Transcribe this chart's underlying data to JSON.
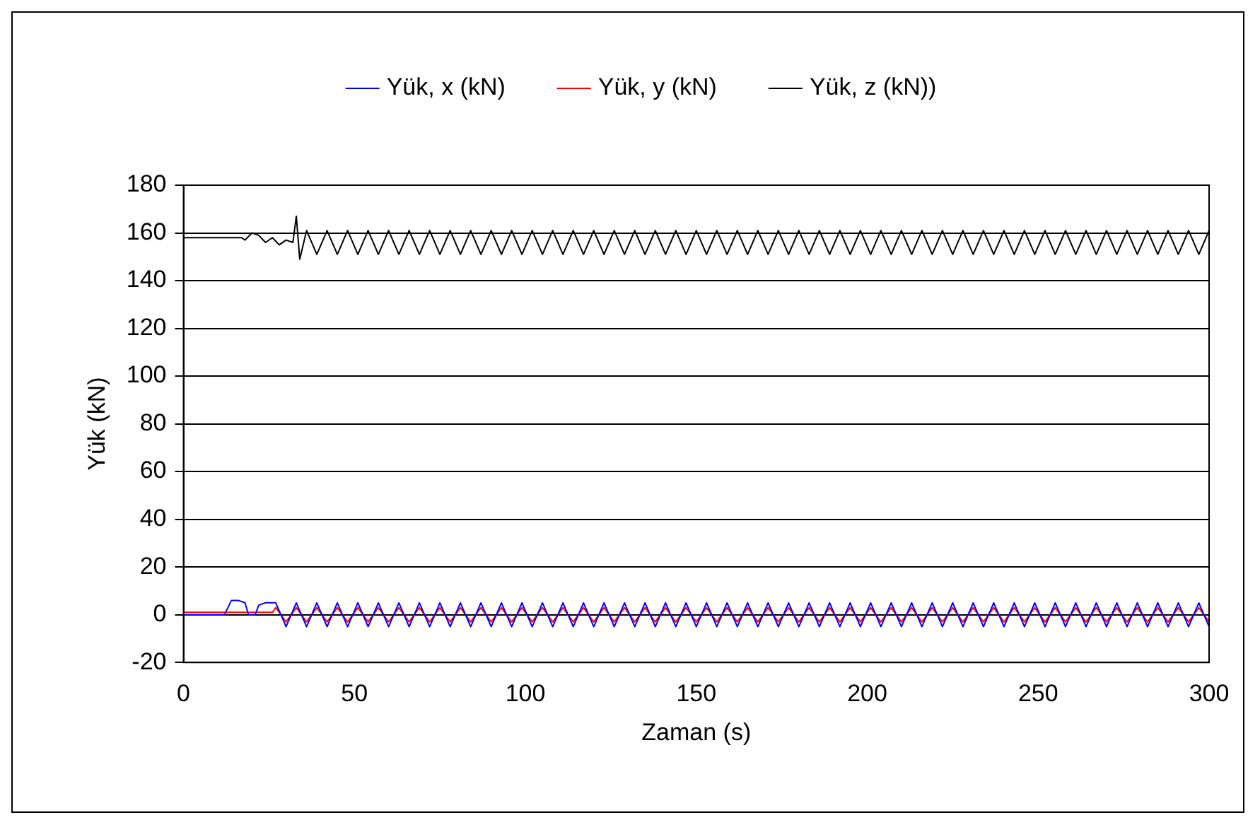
{
  "chart_data": {
    "type": "line",
    "xlabel": "Zaman (s)",
    "ylabel": "Yük (kN)",
    "xlim": [
      0,
      300
    ],
    "xticks": [
      0,
      50,
      100,
      150,
      200,
      250,
      300
    ],
    "ylim": [
      -20,
      180
    ],
    "yticks": [
      -20,
      0,
      20,
      40,
      60,
      80,
      100,
      120,
      140,
      160,
      180
    ],
    "grid": "y",
    "legend": "top",
    "marker": "none",
    "line_style": "solid",
    "series": [
      {
        "name": "Yük, x (kN)",
        "color": "#0000ff",
        "x": [
          0,
          12,
          14,
          16,
          18,
          19,
          20,
          21,
          22,
          24,
          25,
          26,
          27,
          30,
          33,
          36,
          39,
          42,
          45,
          48,
          51,
          54,
          57,
          60,
          63,
          66,
          69,
          72,
          75,
          78,
          81,
          84,
          87,
          90,
          93,
          96,
          99,
          102,
          105,
          108,
          111,
          114,
          117,
          120,
          123,
          126,
          129,
          132,
          135,
          138,
          141,
          144,
          147,
          150,
          153,
          156,
          159,
          162,
          165,
          168,
          171,
          174,
          177,
          180,
          183,
          186,
          189,
          192,
          195,
          198,
          201,
          204,
          207,
          210,
          213,
          216,
          219,
          222,
          225,
          228,
          231,
          234,
          237,
          240,
          243,
          246,
          249,
          252,
          255,
          258,
          261,
          264,
          267,
          270,
          273,
          276,
          279,
          282,
          285,
          288,
          291,
          294,
          297,
          300
        ],
        "values": [
          0,
          0,
          6,
          6,
          5,
          0,
          0,
          0,
          4,
          5,
          5,
          5,
          5,
          -5,
          5,
          -5,
          5,
          -5,
          5,
          -5,
          5,
          -5,
          5,
          -5,
          5,
          -5,
          5,
          -5,
          5,
          -5,
          5,
          -5,
          5,
          -5,
          5,
          -5,
          5,
          -5,
          5,
          -5,
          5,
          -5,
          5,
          -5,
          5,
          -5,
          5,
          -5,
          5,
          -5,
          5,
          -5,
          5,
          -5,
          5,
          -5,
          5,
          -5,
          5,
          -5,
          5,
          -5,
          5,
          -5,
          5,
          -5,
          5,
          -5,
          5,
          -5,
          5,
          -5,
          5,
          -5,
          5,
          -5,
          5,
          -5,
          5,
          -5,
          5,
          -5,
          5,
          -5,
          5,
          -5,
          5,
          -5,
          5,
          -5,
          5,
          -5,
          5,
          -5,
          5,
          -5,
          5,
          -5,
          5,
          -5,
          5,
          -5,
          5,
          -5
        ]
      },
      {
        "name": "Yük, y (kN)",
        "color": "#ff0000",
        "x": [
          0,
          26,
          27,
          30,
          33,
          36,
          39,
          42,
          45,
          48,
          51,
          54,
          57,
          60,
          63,
          66,
          69,
          72,
          75,
          78,
          81,
          84,
          87,
          90,
          93,
          96,
          99,
          102,
          105,
          108,
          111,
          114,
          117,
          120,
          123,
          126,
          129,
          132,
          135,
          138,
          141,
          144,
          147,
          150,
          153,
          156,
          159,
          162,
          165,
          168,
          171,
          174,
          177,
          180,
          183,
          186,
          189,
          192,
          195,
          198,
          201,
          204,
          207,
          210,
          213,
          216,
          219,
          222,
          225,
          228,
          231,
          234,
          237,
          240,
          243,
          246,
          249,
          252,
          255,
          258,
          261,
          264,
          267,
          270,
          273,
          276,
          279,
          282,
          285,
          288,
          291,
          294,
          297,
          300
        ],
        "values": [
          1,
          1,
          3,
          -3,
          3,
          -3,
          3,
          -3,
          3,
          -3,
          3,
          -3,
          3,
          -3,
          3,
          -3,
          3,
          -3,
          3,
          -3,
          3,
          -3,
          3,
          -3,
          3,
          -3,
          3,
          -3,
          3,
          -3,
          3,
          -3,
          3,
          -3,
          3,
          -3,
          3,
          -3,
          3,
          -3,
          3,
          -3,
          3,
          -3,
          3,
          -3,
          3,
          -3,
          3,
          -3,
          3,
          -3,
          3,
          -3,
          3,
          -3,
          3,
          -3,
          3,
          -3,
          3,
          -3,
          3,
          -3,
          3,
          -3,
          3,
          -3,
          3,
          -3,
          3,
          -3,
          3,
          -3,
          3,
          -3,
          3,
          -3,
          3,
          -3,
          3,
          -3,
          3,
          -3,
          3,
          -3,
          3,
          -3,
          3,
          -3,
          3,
          -3,
          3,
          -3
        ]
      },
      {
        "name": "Yük, z (kN))",
        "color": "#000000",
        "x": [
          0,
          17,
          18,
          20,
          22,
          24,
          26,
          28,
          30,
          32,
          33,
          34,
          36,
          39,
          42,
          45,
          48,
          51,
          54,
          57,
          60,
          63,
          66,
          69,
          72,
          75,
          78,
          81,
          84,
          87,
          90,
          93,
          96,
          99,
          102,
          105,
          108,
          111,
          114,
          117,
          120,
          123,
          126,
          129,
          132,
          135,
          138,
          141,
          144,
          147,
          150,
          153,
          156,
          159,
          162,
          165,
          168,
          171,
          174,
          177,
          180,
          183,
          186,
          189,
          192,
          195,
          198,
          201,
          204,
          207,
          210,
          213,
          216,
          219,
          222,
          225,
          228,
          231,
          234,
          237,
          240,
          243,
          246,
          249,
          252,
          255,
          258,
          261,
          264,
          267,
          270,
          273,
          276,
          279,
          282,
          285,
          288,
          291,
          294,
          297,
          300
        ],
        "values": [
          158,
          158,
          157,
          160,
          159,
          156,
          158,
          155,
          157,
          156,
          167,
          149,
          161,
          151,
          161,
          151,
          161,
          151,
          161,
          151,
          161,
          151,
          161,
          151,
          161,
          151,
          161,
          151,
          161,
          151,
          161,
          151,
          161,
          151,
          161,
          151,
          161,
          151,
          161,
          151,
          161,
          151,
          161,
          151,
          161,
          151,
          161,
          151,
          161,
          151,
          161,
          151,
          161,
          151,
          161,
          151,
          161,
          151,
          161,
          151,
          161,
          151,
          161,
          151,
          161,
          151,
          161,
          151,
          161,
          151,
          161,
          151,
          161,
          151,
          161,
          151,
          161,
          151,
          161,
          151,
          161,
          151,
          161,
          151,
          161,
          151,
          161,
          151,
          161,
          151,
          161,
          151,
          161,
          151,
          161,
          151,
          161,
          151,
          161,
          151,
          161
        ]
      }
    ]
  }
}
